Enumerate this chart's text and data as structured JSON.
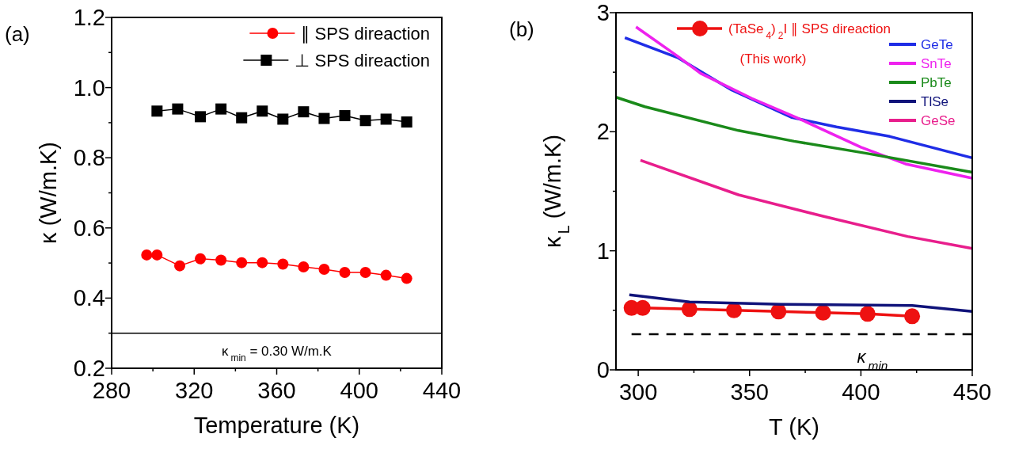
{
  "chart_data": [
    {
      "type": "line",
      "title": "(a)",
      "xlabel": "Temperature (K)",
      "ylabel": "κ (W/m.K)",
      "xlim": [
        280,
        440
      ],
      "xticks": [
        280,
        {
          "value": 300,
          "label": null
        },
        320,
        {
          "value": 340,
          "label": null
        },
        360,
        {
          "value": 380,
          "label": null
        },
        400,
        {
          "value": 420,
          "label": null
        },
        440
      ],
      "ylim": [
        0.2,
        1.2
      ],
      "yticks": [
        0.2,
        {
          "value": 0.3,
          "label": null
        },
        0.4,
        {
          "value": 0.5,
          "label": null
        },
        0.6,
        {
          "value": 0.7,
          "label": null
        },
        0.8,
        {
          "value": 0.9,
          "label": null
        },
        {
          "value": 1.0,
          "label": "1.0"
        },
        {
          "value": 1.1,
          "label": null
        },
        1.2
      ],
      "legend": "top right",
      "grid": false,
      "ref_lines": [
        {
          "axis": "y",
          "value": 0.3,
          "label": "κ$_{min}$ = 0.30 W/m.K",
          "color": "#000000",
          "line_style": "solid"
        }
      ],
      "series": [
        {
          "name": "∥ SPS direaction",
          "color": "#ff0000",
          "marker": "circle",
          "x": [
            297,
            302,
            313,
            323,
            333,
            343,
            353,
            363,
            373,
            383,
            393,
            403,
            413,
            423
          ],
          "values": [
            0.523,
            0.523,
            0.492,
            0.512,
            0.508,
            0.501,
            0.501,
            0.497,
            0.489,
            0.482,
            0.473,
            0.473,
            0.465,
            0.456
          ]
        },
        {
          "name": "⊥ SPS direaction",
          "color": "#000000",
          "marker": "square",
          "x": [
            302,
            312,
            323,
            333,
            343,
            353,
            363,
            373,
            383,
            393,
            403,
            413,
            423
          ],
          "values": [
            0.933,
            0.939,
            0.917,
            0.939,
            0.914,
            0.933,
            0.91,
            0.931,
            0.912,
            0.92,
            0.906,
            0.91,
            0.902
          ]
        }
      ]
    },
    {
      "type": "line",
      "title": "(b)",
      "xlabel": "T (K)",
      "ylabel": "κ$_{L}$ (W/m.K)",
      "xlim": [
        290,
        450
      ],
      "xticks": [
        300,
        {
          "value": 325,
          "label": null
        },
        350,
        {
          "value": 375,
          "label": null
        },
        400,
        {
          "value": 425,
          "label": null
        },
        450
      ],
      "ylim": [
        0,
        3
      ],
      "yticks": [
        0,
        {
          "value": 0.5,
          "label": null
        },
        1,
        {
          "value": 1.5,
          "label": null
        },
        2,
        {
          "value": 2.5,
          "label": null
        },
        3
      ],
      "legend": "top right",
      "grid": false,
      "annotations": [
        "(This work)"
      ],
      "ref_lines": [
        {
          "axis": "y",
          "value": 0.3,
          "label": "κ$_{min}$",
          "color": "#000000",
          "line_style": "dashed"
        }
      ],
      "series": [
        {
          "name": "(TaSe$_{4}$)$_{2}$I  ∥ SPS direaction",
          "color": "#ee1111",
          "marker": "circle",
          "x": [
            297,
            302,
            323,
            343,
            363,
            383,
            403,
            423
          ],
          "values": [
            0.52,
            0.52,
            0.51,
            0.5,
            0.49,
            0.48,
            0.47,
            0.45
          ]
        },
        {
          "name": "GeTe",
          "color": "#1f2de6",
          "marker": "none",
          "x": [
            294,
            318,
            342,
            369,
            389,
            413,
            450
          ],
          "values": [
            2.79,
            2.62,
            2.35,
            2.12,
            2.04,
            1.96,
            1.78
          ]
        },
        {
          "name": "SnTe",
          "color": "#ee22ee",
          "marker": "none",
          "x": [
            299,
            318,
            328,
            351,
            371,
            400,
            420,
            450
          ],
          "values": [
            2.88,
            2.63,
            2.49,
            2.28,
            2.12,
            1.87,
            1.73,
            1.61
          ]
        },
        {
          "name": "PbTe",
          "color": "#1a8a1a",
          "marker": "none",
          "x": [
            290,
            303,
            345,
            370,
            402,
            450
          ],
          "values": [
            2.29,
            2.21,
            2.01,
            1.92,
            1.82,
            1.66
          ]
        },
        {
          "name": "TlSe",
          "color": "#10137a",
          "marker": "none",
          "x": [
            296,
            323,
            364,
            423,
            450
          ],
          "values": [
            0.63,
            0.57,
            0.55,
            0.54,
            0.49
          ]
        },
        {
          "name": "GeSe",
          "color": "#e81e8c",
          "marker": "none",
          "x": [
            301,
            345,
            383,
            421,
            450
          ],
          "values": [
            1.76,
            1.47,
            1.29,
            1.12,
            1.02
          ]
        }
      ]
    }
  ]
}
